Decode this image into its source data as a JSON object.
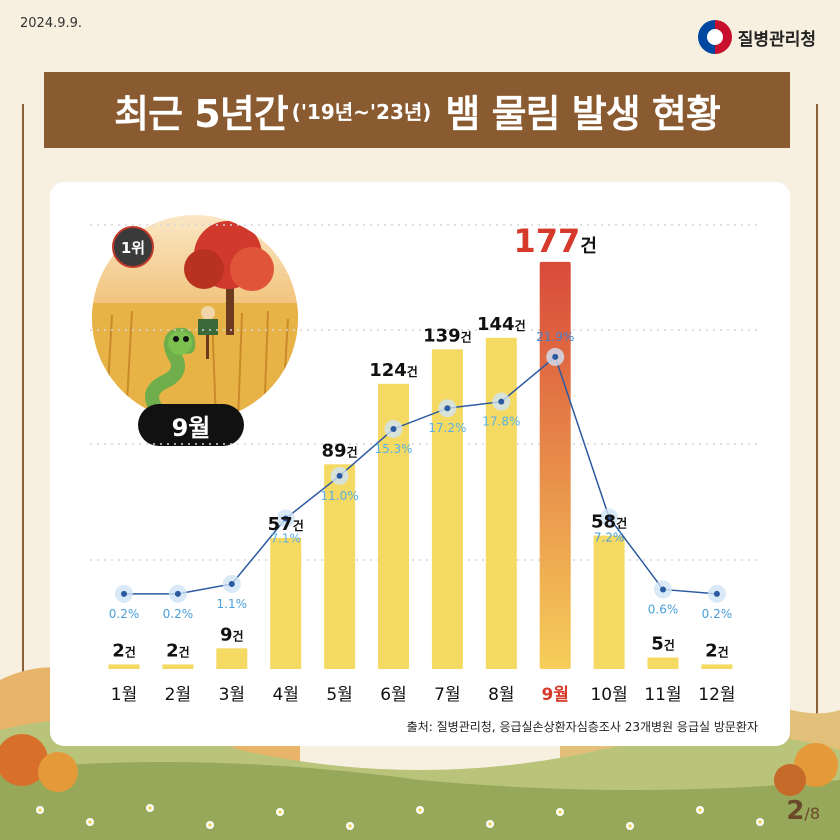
{
  "header": {
    "date": "2024.9.9.",
    "org": "질병관리청",
    "title_main": "최근 5년간",
    "title_period": "('19년~'23년)",
    "title_rest": "뱀 물림 발생 현황"
  },
  "badge": {
    "rank": "1위",
    "month": "9월"
  },
  "footer": {
    "source": "출처: 질병관리청, 응급실손상환자심층조사 23개병원 응급실 방문환자",
    "page_current": "2",
    "page_total": "/8"
  },
  "colors": {
    "bar": "#f4da63",
    "highlight_top": "#d94a3a",
    "highlight_bottom": "#f6ce5a",
    "line": "#2c5aa0",
    "percent_text": "#4a9fd8",
    "brown": "#8a5a30"
  },
  "chart_data": {
    "type": "bar",
    "categories": [
      "1월",
      "2월",
      "3월",
      "4월",
      "5월",
      "6월",
      "7월",
      "8월",
      "9월",
      "10월",
      "11월",
      "12월"
    ],
    "values": [
      2,
      2,
      9,
      57,
      89,
      124,
      139,
      144,
      177,
      58,
      5,
      2
    ],
    "value_labels": [
      "2건",
      "2건",
      "9건",
      "57건",
      "89건",
      "124건",
      "139건",
      "144건",
      "177건",
      "58건",
      "5건",
      "2건"
    ],
    "percent_series": {
      "values": [
        0.2,
        0.2,
        1.1,
        7.1,
        11.0,
        15.3,
        17.2,
        17.8,
        21.9,
        7.2,
        0.6,
        0.2
      ],
      "labels": [
        "0.2%",
        "0.2%",
        "1.1%",
        "7.1%",
        "11.0%",
        "15.3%",
        "17.2%",
        "17.8%",
        "21.9%",
        "7.2%",
        "0.6%",
        "0.2%"
      ]
    },
    "highlight_index": 8,
    "ylim": [
      0,
      180
    ],
    "grid": true
  }
}
